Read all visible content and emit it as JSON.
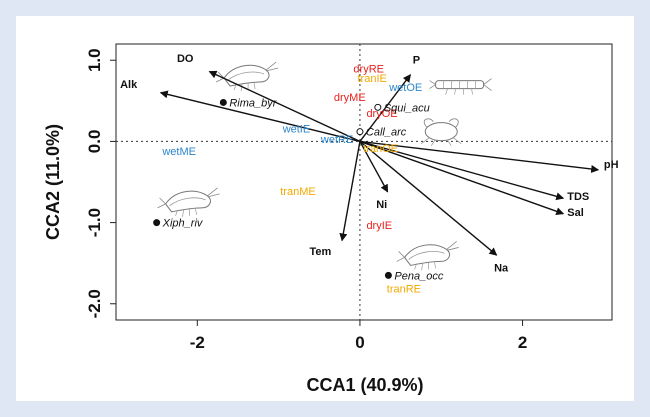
{
  "chart_data": {
    "type": "scatter",
    "xlabel": "CCA1 (40.9%)",
    "ylabel": "CCA2 (11.0%)",
    "xlim": [
      -3.0,
      3.1
    ],
    "ylim": [
      -2.2,
      1.2
    ],
    "xticks": [
      -2,
      0,
      2
    ],
    "xtick_labels": [
      "-2",
      "0",
      "2"
    ],
    "yticks": [
      1.0,
      0.0,
      -1.0,
      -2.0
    ],
    "ytick_labels": [
      "1.0",
      "0.0",
      "-1.0",
      "-2.0"
    ],
    "reference_lines": {
      "x": 0,
      "y": 0,
      "style": "dotted"
    },
    "colors": {
      "dry": "#e8221e",
      "wet": "#2b86cc",
      "tran": "#f2a900",
      "vector": "#111111",
      "species": "#111111"
    },
    "vectors": [
      {
        "label": "DO",
        "x": -1.85,
        "y": 0.86
      },
      {
        "label": "Alk",
        "x": -2.45,
        "y": 0.6
      },
      {
        "label": "P",
        "x": 0.62,
        "y": 0.82
      },
      {
        "label": "pH",
        "x": 2.93,
        "y": -0.35
      },
      {
        "label": "TDS",
        "x": 2.5,
        "y": -0.7
      },
      {
        "label": "Sal",
        "x": 2.5,
        "y": -0.89
      },
      {
        "label": "Na",
        "x": 1.68,
        "y": -1.4
      },
      {
        "label": "Ni",
        "x": 0.34,
        "y": -0.62
      },
      {
        "label": "Tem",
        "x": -0.22,
        "y": -1.22
      }
    ],
    "vector_labels": [
      {
        "label": "DO",
        "x": -2.25,
        "y": 0.98
      },
      {
        "label": "Alk",
        "x": -2.95,
        "y": 0.66
      },
      {
        "label": "P",
        "x": 0.65,
        "y": 0.96
      },
      {
        "label": "pH",
        "x": 3.0,
        "y": -0.33
      },
      {
        "label": "TDS",
        "x": 2.55,
        "y": -0.72
      },
      {
        "label": "Sal",
        "x": 2.55,
        "y": -0.92
      },
      {
        "label": "Na",
        "x": 1.65,
        "y": -1.6
      },
      {
        "label": "Ni",
        "x": 0.2,
        "y": -0.82
      },
      {
        "label": "Tem",
        "x": -0.62,
        "y": -1.4
      }
    ],
    "sites": [
      {
        "label": "dryRE",
        "group": "dry",
        "x": -0.08,
        "y": 0.85
      },
      {
        "label": "tranIE",
        "group": "tran",
        "x": -0.03,
        "y": 0.73
      },
      {
        "label": "wetOE",
        "group": "wet",
        "x": 0.36,
        "y": 0.62
      },
      {
        "label": "dryME",
        "group": "dry",
        "x": -0.32,
        "y": 0.5
      },
      {
        "label": "dryOE",
        "group": "dry",
        "x": 0.08,
        "y": 0.3
      },
      {
        "label": "wetIE",
        "group": "wet",
        "x": -0.95,
        "y": 0.11
      },
      {
        "label": "wetRE",
        "group": "wet",
        "x": -0.48,
        "y": -0.02
      },
      {
        "label": "tranOE",
        "group": "tran",
        "x": 0.04,
        "y": -0.13
      },
      {
        "label": "wetME",
        "group": "wet",
        "x": -2.43,
        "y": -0.17
      },
      {
        "label": "tranME",
        "group": "tran",
        "x": -0.98,
        "y": -0.66
      },
      {
        "label": "dryIE",
        "group": "dry",
        "x": 0.08,
        "y": -1.08
      },
      {
        "label": "tranRE",
        "group": "tran",
        "x": 0.33,
        "y": -1.86
      }
    ],
    "species": [
      {
        "label": "Rima_byr",
        "x": -1.68,
        "y": 0.48,
        "marker": "filled"
      },
      {
        "label": "Squi_acu",
        "x": 0.22,
        "y": 0.42,
        "marker": "open"
      },
      {
        "label": "Call_arc",
        "x": 0.0,
        "y": 0.12,
        "marker": "open"
      },
      {
        "label": "Xiph_riv",
        "x": -2.5,
        "y": -1.0,
        "marker": "filled"
      },
      {
        "label": "Pena_occ",
        "x": 0.35,
        "y": -1.65,
        "marker": "filled"
      }
    ],
    "icons": [
      {
        "name": "shrimp-icon",
        "x": -1.4,
        "y": 0.83
      },
      {
        "name": "mantis-shrimp-icon",
        "x": 1.25,
        "y": 0.7
      },
      {
        "name": "crab-icon",
        "x": 1.0,
        "y": 0.12
      },
      {
        "name": "shrimp-icon",
        "x": -2.12,
        "y": -0.72
      },
      {
        "name": "shrimp-icon",
        "x": 0.82,
        "y": -1.38
      }
    ]
  }
}
